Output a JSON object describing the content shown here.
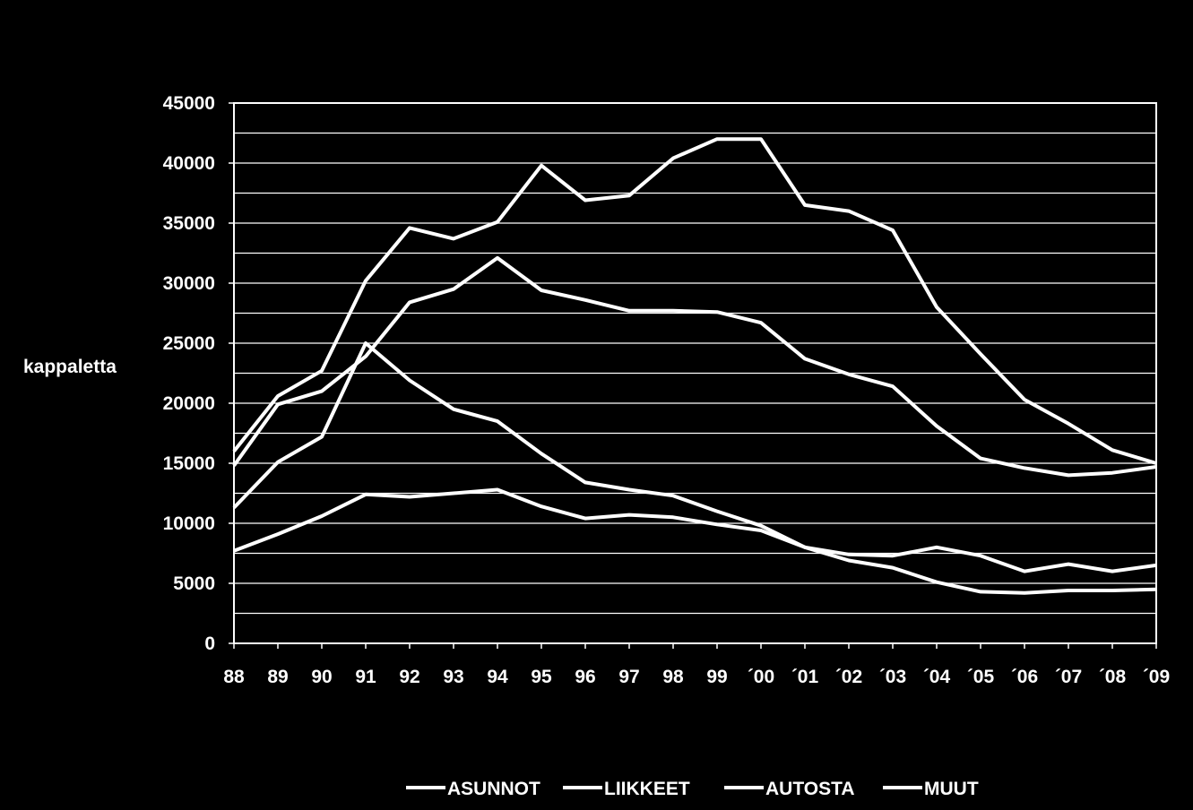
{
  "chart_data": {
    "type": "line",
    "title": "",
    "xlabel": "",
    "ylabel": "kappaletta",
    "ylim": [
      0,
      45000
    ],
    "y_ticks": [
      0,
      5000,
      10000,
      15000,
      20000,
      25000,
      30000,
      35000,
      40000,
      45000
    ],
    "grid": true,
    "legend_position": "bottom",
    "colors": {
      "background": "#000000",
      "line": "#ffffff",
      "grid": "#ffffff"
    },
    "categories": [
      "88",
      "89",
      "90",
      "91",
      "92",
      "93",
      "94",
      "95",
      "96",
      "97",
      "98",
      "99",
      "´00",
      "´01",
      "´02",
      "´03",
      "´04",
      "´05",
      "´06",
      "´07",
      "´08",
      "´09"
    ],
    "series": [
      {
        "name": "ASUNNOT",
        "values": [
          16000,
          20600,
          22700,
          30200,
          34600,
          33700,
          35100,
          39800,
          36900,
          37300,
          40400,
          42000,
          42000,
          36500,
          36000,
          34400,
          28000,
          24100,
          20300,
          18300,
          16100,
          15000
        ]
      },
      {
        "name": "LIIKKEET",
        "values": [
          14800,
          19900,
          21000,
          23900,
          28400,
          29500,
          32100,
          29400,
          28600,
          27700,
          27700,
          27600,
          26700,
          23700,
          22400,
          21400,
          18100,
          15400,
          14600,
          14000,
          14200,
          14700
        ]
      },
      {
        "name": "AUTOSTA",
        "values": [
          11300,
          15100,
          17200,
          25000,
          21900,
          19500,
          18500,
          15800,
          13400,
          12800,
          12300,
          11000,
          9800,
          8000,
          6900,
          6300,
          5100,
          4300,
          4200,
          4400,
          4400,
          4500
        ]
      },
      {
        "name": "MUUT",
        "values": [
          7700,
          9100,
          10600,
          12400,
          12200,
          12500,
          12800,
          11400,
          10400,
          10700,
          10500,
          9900,
          9400,
          8000,
          7400,
          7300,
          8000,
          7300,
          6000,
          6600,
          6000,
          6500
        ]
      }
    ]
  }
}
